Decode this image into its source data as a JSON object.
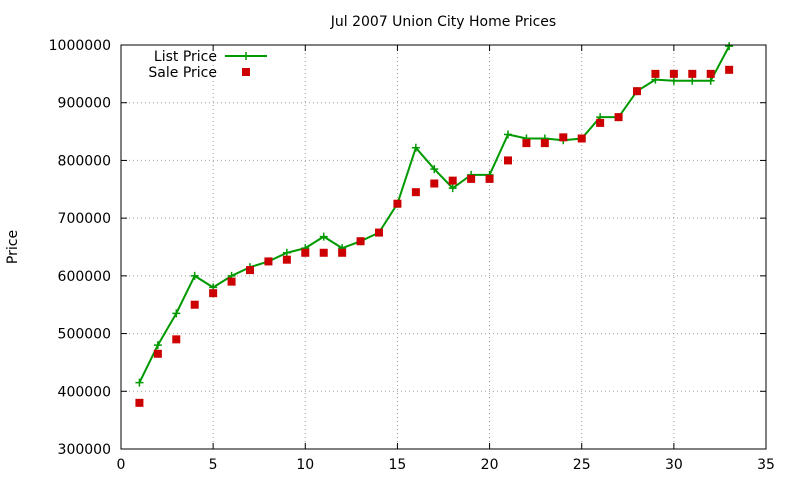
{
  "chart_data": {
    "type": "line",
    "title": "Jul 2007 Union City Home Prices",
    "xlabel": "",
    "ylabel": "Price",
    "xlim": [
      0,
      35
    ],
    "ylim": [
      300000,
      1000000
    ],
    "xticks": [
      0,
      5,
      10,
      15,
      20,
      25,
      30,
      35
    ],
    "yticks": [
      300000,
      400000,
      500000,
      600000,
      700000,
      800000,
      900000,
      1000000
    ],
    "grid": true,
    "legend_position": "top-left",
    "series": [
      {
        "name": "List Price",
        "style": "line+cross",
        "color": "#009900",
        "x": [
          1,
          2,
          3,
          4,
          5,
          6,
          7,
          8,
          9,
          10,
          11,
          12,
          13,
          14,
          15,
          16,
          17,
          18,
          19,
          20,
          21,
          22,
          23,
          24,
          25,
          26,
          27,
          28,
          29,
          30,
          31,
          32,
          33
        ],
        "y": [
          415000,
          480000,
          535000,
          600000,
          580000,
          600000,
          615000,
          625000,
          640000,
          648000,
          668000,
          648000,
          660000,
          675000,
          725000,
          822000,
          785000,
          752000,
          775000,
          775000,
          845000,
          838000,
          838000,
          835000,
          838000,
          875000,
          875000,
          920000,
          940000,
          938000,
          938000,
          938000,
          998000
        ]
      },
      {
        "name": "Sale Price",
        "style": "square-marker",
        "color": "#cc0000",
        "x": [
          1,
          2,
          3,
          4,
          5,
          6,
          7,
          8,
          9,
          10,
          11,
          12,
          13,
          14,
          15,
          16,
          17,
          18,
          19,
          20,
          21,
          22,
          23,
          24,
          25,
          26,
          27,
          28,
          29,
          30,
          31,
          32,
          33
        ],
        "y": [
          380000,
          465000,
          490000,
          550000,
          570000,
          590000,
          610000,
          625000,
          628000,
          640000,
          640000,
          640000,
          660000,
          675000,
          725000,
          745000,
          760000,
          765000,
          768000,
          768000,
          800000,
          830000,
          830000,
          840000,
          838000,
          865000,
          875000,
          920000,
          950000,
          950000,
          950000,
          950000,
          957000
        ]
      }
    ]
  }
}
